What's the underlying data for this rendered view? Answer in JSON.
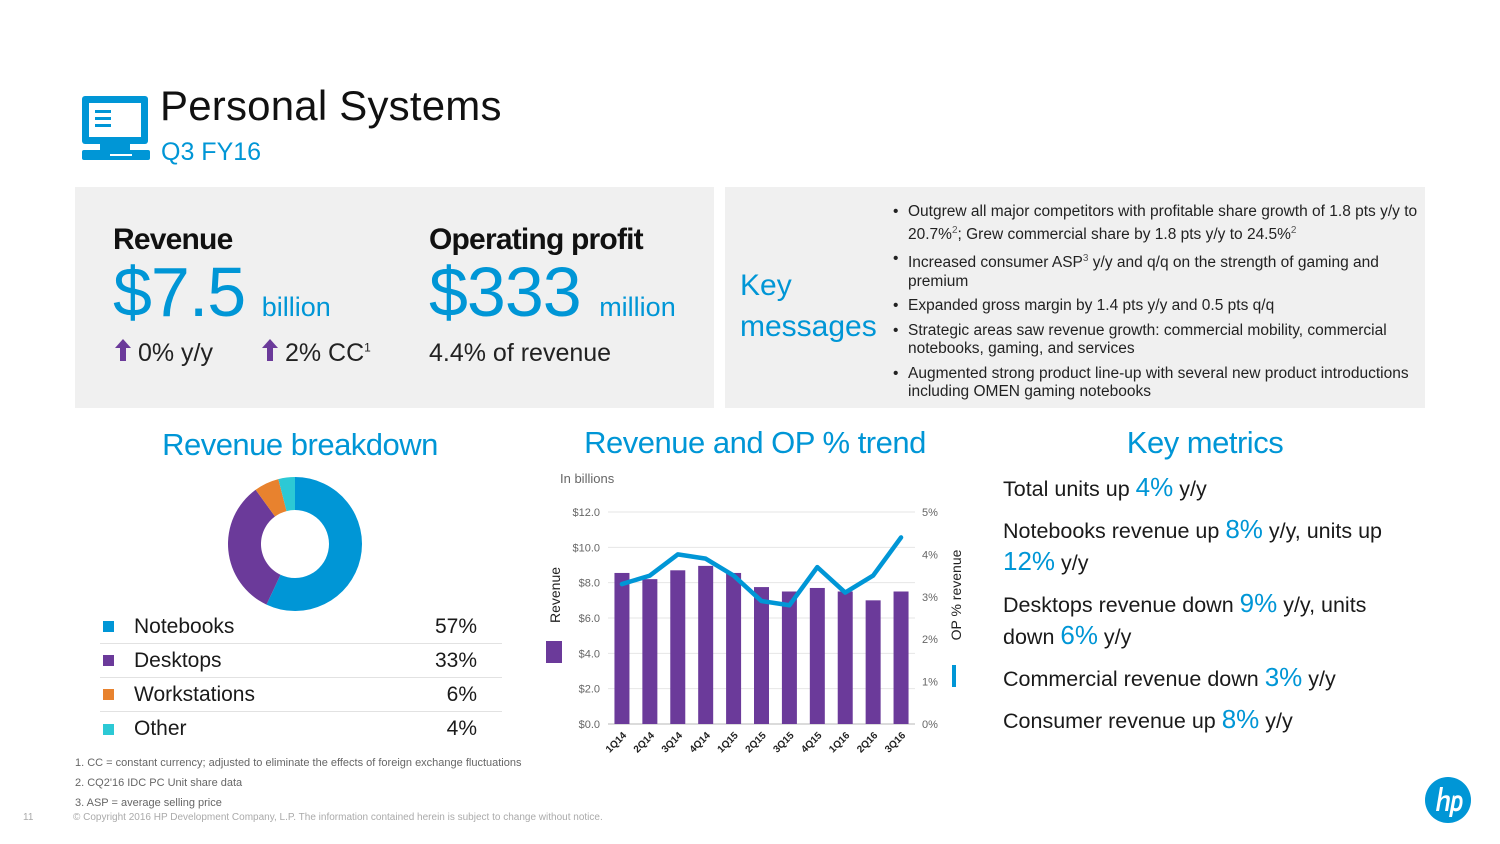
{
  "header": {
    "title": "Personal Systems",
    "subtitle": "Q3 FY16",
    "icon": "monitor-icon"
  },
  "summary": {
    "revenue": {
      "label": "Revenue",
      "value": "$7.5",
      "unit": "billion",
      "change_yy": "0% y/y",
      "change_cc": "2% CC",
      "change_cc_footnote": "1",
      "arrow_icon": "up-arrow-icon",
      "arrow_color": "#6B3A9A"
    },
    "operating_profit": {
      "label": "Operating profit",
      "value": "$333",
      "unit": "million",
      "margin": "4.4% of revenue"
    }
  },
  "key_messages": {
    "label_line1": "Key",
    "label_line2": "messages",
    "items": [
      {
        "text_a": "Outgrew all major competitors with profitable share growth of 1.8 pts y/y to 20.7%",
        "sup_a": "2",
        "text_b": "; Grew commercial share by 1.8 pts y/y to 24.5%",
        "sup_b": "2"
      },
      {
        "text_a": "Increased consumer ASP",
        "sup_a": "3",
        "text_b": " y/y and q/q on the strength of gaming and premium",
        "sup_b": ""
      },
      {
        "text_a": "Expanded gross margin by 1.4 pts y/y and 0.5 pts q/q",
        "sup_a": "",
        "text_b": "",
        "sup_b": ""
      },
      {
        "text_a": "Strategic areas saw revenue growth: commercial mobility, commercial notebooks, gaming, and services",
        "sup_a": "",
        "text_b": "",
        "sup_b": ""
      },
      {
        "text_a": "Augmented strong product line-up with several new product introductions including OMEN gaming notebooks",
        "sup_a": "",
        "text_b": "",
        "sup_b": ""
      }
    ]
  },
  "revenue_breakdown": {
    "title": "Revenue breakdown",
    "items": [
      {
        "label": "Notebooks",
        "value": "57%",
        "color": "#0096D6"
      },
      {
        "label": "Desktops",
        "value": "33%",
        "color": "#6B3A9A"
      },
      {
        "label": "Workstations",
        "value": "6%",
        "color": "#E8822E"
      },
      {
        "label": "Other",
        "value": "4%",
        "color": "#2CC9D5"
      }
    ]
  },
  "trend": {
    "title": "Revenue and OP % trend"
  },
  "chart_data": [
    {
      "type": "pie",
      "title": "Revenue breakdown",
      "categories": [
        "Notebooks",
        "Desktops",
        "Workstations",
        "Other"
      ],
      "values": [
        57,
        33,
        6,
        4
      ],
      "colors": [
        "#0096D6",
        "#6B3A9A",
        "#E8822E",
        "#2CC9D5"
      ],
      "donut": true,
      "start": "top, clockwise"
    },
    {
      "type": "bar",
      "title": "Revenue and OP % trend",
      "subtitle": "In billions",
      "categories": [
        "1Q14",
        "2Q14",
        "3Q14",
        "4Q14",
        "1Q15",
        "2Q15",
        "3Q15",
        "4Q15",
        "1Q16",
        "2Q16",
        "3Q16"
      ],
      "series": [
        {
          "name": "Revenue",
          "type": "bar",
          "axis": "left",
          "color": "#6B3A9A",
          "values": [
            8.55,
            8.2,
            8.7,
            8.95,
            8.55,
            7.75,
            7.5,
            7.7,
            7.5,
            7.0,
            7.5
          ]
        },
        {
          "name": "OP % revenue",
          "type": "line",
          "axis": "right",
          "color": "#0096D6",
          "values": [
            3.3,
            3.5,
            4.0,
            3.9,
            3.5,
            2.9,
            2.8,
            3.7,
            3.1,
            3.5,
            4.4
          ]
        }
      ],
      "ylabel": "Revenue",
      "y2label": "OP % revenue",
      "ylim": [
        0,
        12
      ],
      "y2lim": [
        0,
        5
      ],
      "yticks": [
        "$0.0",
        "$2.0",
        "$4.0",
        "$6.0",
        "$8.0",
        "$10.0",
        "$12.0"
      ],
      "y2ticks": [
        "0%",
        "1%",
        "2%",
        "3%",
        "4%",
        "5%"
      ],
      "grid": true,
      "legend": "axis-labels (left and right)"
    }
  ],
  "key_metrics": {
    "title": "Key metrics",
    "items": [
      {
        "pre": "Total units up ",
        "hl": "4%",
        "post": " y/y",
        "pre2": "",
        "hl2": "",
        "post2": ""
      },
      {
        "pre": "Notebooks revenue up ",
        "hl": "8%",
        "post": " y/y, units up ",
        "pre2": "",
        "hl2": "12%",
        "post2": " y/y"
      },
      {
        "pre": "Desktops revenue down ",
        "hl": "9%",
        "post": " y/y, units down ",
        "pre2": "",
        "hl2": "6%",
        "post2": " y/y"
      },
      {
        "pre": "Commercial revenue down ",
        "hl": "3%",
        "post": " y/y",
        "pre2": "",
        "hl2": "",
        "post2": ""
      },
      {
        "pre": "Consumer revenue up ",
        "hl": "8%",
        "post": " y/y",
        "pre2": "",
        "hl2": "",
        "post2": ""
      }
    ]
  },
  "footnotes": [
    "1.  CC = constant currency; adjusted to eliminate the effects of foreign exchange fluctuations",
    "2.  CQ2'16 IDC PC Unit share data",
    "3.  ASP = average selling price"
  ],
  "footer": {
    "page_number": "11",
    "copyright": "© Copyright 2016 HP Development Company, L.P. The information contained herein is subject to change without notice."
  },
  "brand": {
    "logo": "hp-logo",
    "accent": "#0096D6",
    "purple": "#6B3A9A"
  }
}
